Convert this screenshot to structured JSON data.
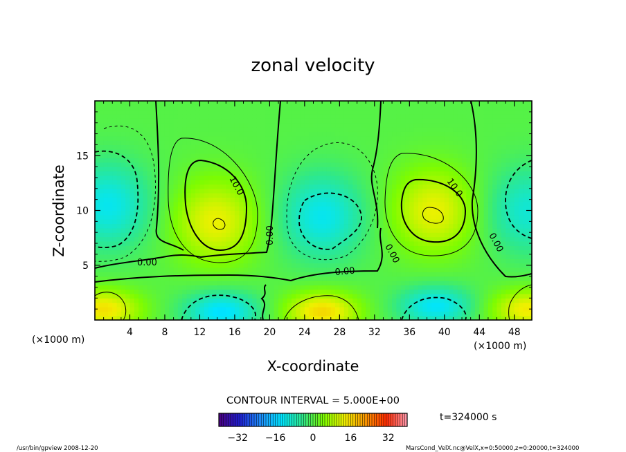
{
  "chart_data": {
    "type": "heatmap",
    "title": "zonal velocity",
    "xlabel": "X-coordinate",
    "ylabel": "Z-coordinate",
    "x_unit": "(×1000 m)",
    "y_unit": "(×1000 m)",
    "x_ticks": [
      "4",
      "8",
      "12",
      "16",
      "20",
      "24",
      "28",
      "32",
      "36",
      "40",
      "44",
      "48"
    ],
    "y_ticks": [
      "5",
      "10",
      "15"
    ],
    "xlim": [
      0,
      50
    ],
    "ylim": [
      0,
      20
    ],
    "contour_interval_text": "CONTOUR INTERVAL = 5.000E+00",
    "contour_interval": 5.0,
    "contour_labels": [
      "10.0",
      "10.0",
      "0.00",
      "0.00",
      "0.00",
      "0.00",
      "0.00"
    ],
    "colorbar": {
      "range": [
        -40,
        40
      ],
      "ticks": [
        "−32",
        "−16",
        "0",
        "16",
        "32"
      ],
      "colors": [
        "#4b0082",
        "#1f1fcf",
        "#1e90ff",
        "#00e5ff",
        "#2ee88c",
        "#7dfc00",
        "#f0f000",
        "#ff9a00",
        "#ff2a00",
        "#ff9bb0"
      ]
    },
    "time_label": "t=324000 s",
    "field_extrema": [
      {
        "x": 1.5,
        "z": 10.5,
        "value": -12
      },
      {
        "x": 13.8,
        "z": 9.0,
        "value": 13
      },
      {
        "x": 26.0,
        "z": 9.5,
        "value": -12
      },
      {
        "x": 38.8,
        "z": 10.0,
        "value": 13
      },
      {
        "x": 49.5,
        "z": 10.0,
        "value": -10
      },
      {
        "x": 1.0,
        "z": 1.0,
        "value": 15
      },
      {
        "x": 14.5,
        "z": 0.8,
        "value": -14
      },
      {
        "x": 26.0,
        "z": 0.8,
        "value": 16
      },
      {
        "x": 39.0,
        "z": 1.3,
        "value": -13
      },
      {
        "x": 49.5,
        "z": 1.0,
        "value": 14
      }
    ]
  },
  "footer": {
    "left_text": "/usr/bin/gpview  2008-12-20",
    "right_text": "MarsCond_VelX.nc@VelX,x=0:50000,z=0:20000,t=324000"
  }
}
